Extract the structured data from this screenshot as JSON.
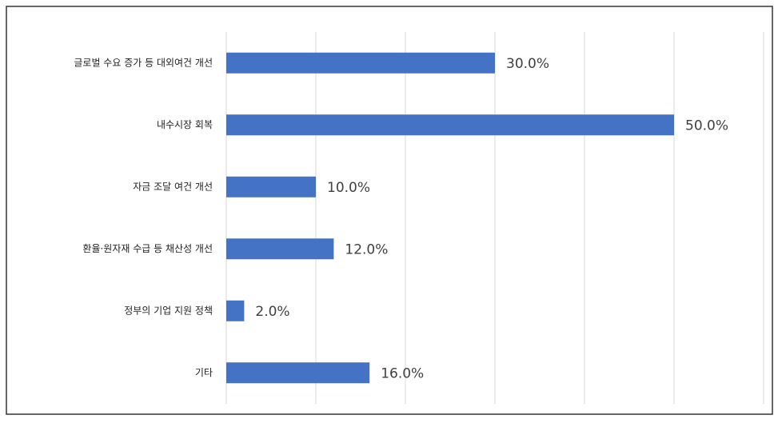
{
  "chart_data": {
    "type": "hbar",
    "categories": [
      "글로벌 수요 증가 등 대외여건 개선",
      "내수시장 회복",
      "자금 조달 여건 개선",
      "환율·원자재 수급 등 채산성 개선",
      "정부의 기업 지원 정책",
      "기타"
    ],
    "values": [
      30,
      50,
      10,
      12,
      2,
      16
    ],
    "value_labels": [
      "30.0%",
      "50.0%",
      "10.0%",
      "12.0%",
      "2.0%",
      "16.0%"
    ],
    "color": "#4472c4",
    "xlim": [
      0,
      60
    ],
    "xticks": [
      0,
      10,
      20,
      30,
      40,
      50,
      60
    ],
    "grid": true
  }
}
